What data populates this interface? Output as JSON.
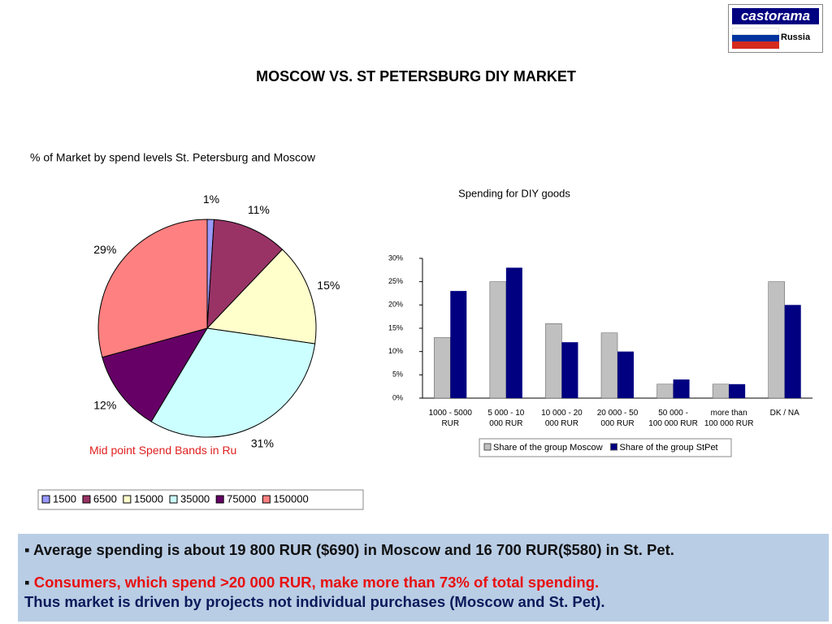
{
  "title": "MOSCOW VS. ST PETERSBURG DIY MARKET",
  "logo": {
    "name": "castorama",
    "country": "Russia"
  },
  "bullets": [
    "Average spending is about 19 800 RUR ($690) in Moscow and 16 700 RUR($580) in St. Pet.",
    "Consumers, which spend >20 000 RUR, make more than 73% of total spending.",
    "Thus market is driven by projects not individual purchases (Moscow and St. Pet)."
  ],
  "chart_data": [
    {
      "type": "pie",
      "title": "% of Market by spend levels St. Petersburg and Moscow",
      "subtitle": "Mid point Spend Bands in Ru",
      "categories": [
        "1500",
        "6500",
        "15000",
        "35000",
        "75000",
        "150000"
      ],
      "values": [
        1,
        11,
        15,
        31,
        12,
        29
      ],
      "value_labels": [
        "1%",
        "11%",
        "15%",
        "31%",
        "12%",
        "29%"
      ],
      "colors": [
        "#9999ff",
        "#993366",
        "#ffffcc",
        "#ccffff",
        "#660066",
        "#ff8080"
      ]
    },
    {
      "type": "bar",
      "title": "Spending for DIY goods",
      "categories": [
        "1000 - 5000 RUR",
        "5 000 - 10 000 RUR",
        "10 000 - 20 000 RUR",
        "20 000 - 50 000 RUR",
        "50 000 - 100 000 RUR",
        "more than 100 000 RUR",
        "DK / NA"
      ],
      "series": [
        {
          "name": "Share of the group Moscow",
          "color": "#c0c0c0",
          "values": [
            13,
            25,
            16,
            14,
            3,
            3,
            25
          ]
        },
        {
          "name": "Share of the group StPet",
          "color": "#000080",
          "values": [
            23,
            28,
            12,
            10,
            4,
            3,
            20
          ]
        }
      ],
      "ylim": [
        0,
        30
      ],
      "yticks": [
        {
          "value": 0,
          "label": "0%"
        },
        {
          "value": 5,
          "label": "5%"
        },
        {
          "value": 10,
          "label": "10%"
        },
        {
          "value": 15,
          "label": "15%"
        },
        {
          "value": 20,
          "label": "20%"
        },
        {
          "value": 25,
          "label": "25%"
        },
        {
          "value": 30,
          "label": "30%"
        }
      ]
    }
  ]
}
